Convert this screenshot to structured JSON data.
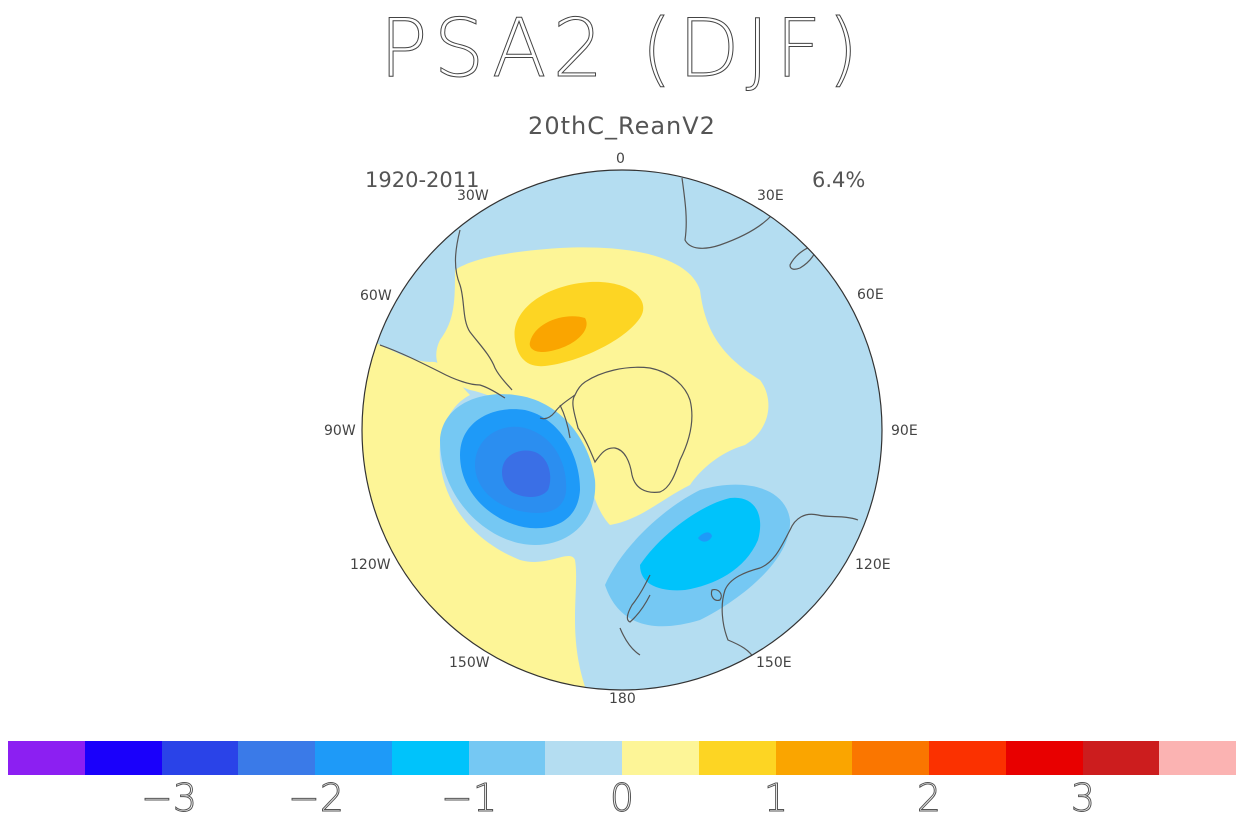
{
  "title": "PSA2 (DJF)",
  "subtitle": "20thC_ReanV2",
  "period": "1920-2011",
  "variance": "6.4%",
  "longitude_labels": [
    "0",
    "30E",
    "60E",
    "90E",
    "120E",
    "150E",
    "180",
    "150W",
    "120W",
    "90W",
    "60W",
    "30W"
  ],
  "colorbar": {
    "colors": [
      "#8c1ff2",
      "#1a00fb",
      "#2a43e8",
      "#3a7ae8",
      "#1e9af8",
      "#00c3fb",
      "#75c8f3",
      "#b4ddf1",
      "#fdf597",
      "#fdd523",
      "#faa500",
      "#fa7600",
      "#fb3100",
      "#e80000",
      "#cc1d1e",
      "#fbb3b2"
    ],
    "tick_labels": [
      "−3",
      "−2",
      "−1",
      "0",
      "1",
      "2",
      "3"
    ]
  },
  "map": {
    "projection": "south-polar-stereographic",
    "ocean_color": "#b4ddf1",
    "coast_color": "#555555"
  }
}
